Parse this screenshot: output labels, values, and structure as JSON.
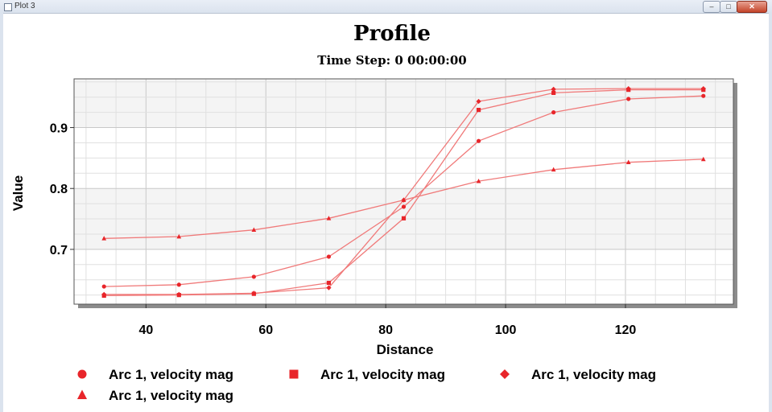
{
  "window": {
    "title": "Plot 3"
  },
  "chart_data": {
    "type": "line",
    "title": "Profile",
    "subtitle": "Time Step: 0 00:00:00",
    "xlabel": "Distance",
    "ylabel": "Value",
    "xlim": [
      28,
      138
    ],
    "ylim": [
      0.61,
      0.98
    ],
    "x_ticks": [
      40,
      60,
      80,
      100,
      120
    ],
    "y_ticks": [
      0.7,
      0.8,
      0.9
    ],
    "grid": true,
    "legend_position": "bottom",
    "series_color": "#e8252a",
    "line_color": "#f07a7a",
    "x": [
      33,
      45.5,
      58,
      70.5,
      83,
      95.5,
      108,
      120.5,
      133
    ],
    "series": [
      {
        "name": "Arc 1, velocity mag",
        "marker": "circle",
        "values": [
          0.639,
          0.642,
          0.655,
          0.688,
          0.77,
          0.878,
          0.925,
          0.947,
          0.952
        ]
      },
      {
        "name": "Arc 1, velocity mag",
        "marker": "square",
        "values": [
          0.624,
          0.625,
          0.627,
          0.645,
          0.751,
          0.929,
          0.957,
          0.962,
          0.962
        ]
      },
      {
        "name": "Arc 1, velocity mag",
        "marker": "diamond",
        "values": [
          0.626,
          0.626,
          0.628,
          0.637,
          0.781,
          0.943,
          0.963,
          0.964,
          0.964
        ]
      },
      {
        "name": "Arc 1, velocity mag",
        "marker": "triangle",
        "values": [
          0.718,
          0.721,
          0.732,
          0.751,
          0.781,
          0.812,
          0.831,
          0.843,
          0.848
        ]
      }
    ]
  }
}
